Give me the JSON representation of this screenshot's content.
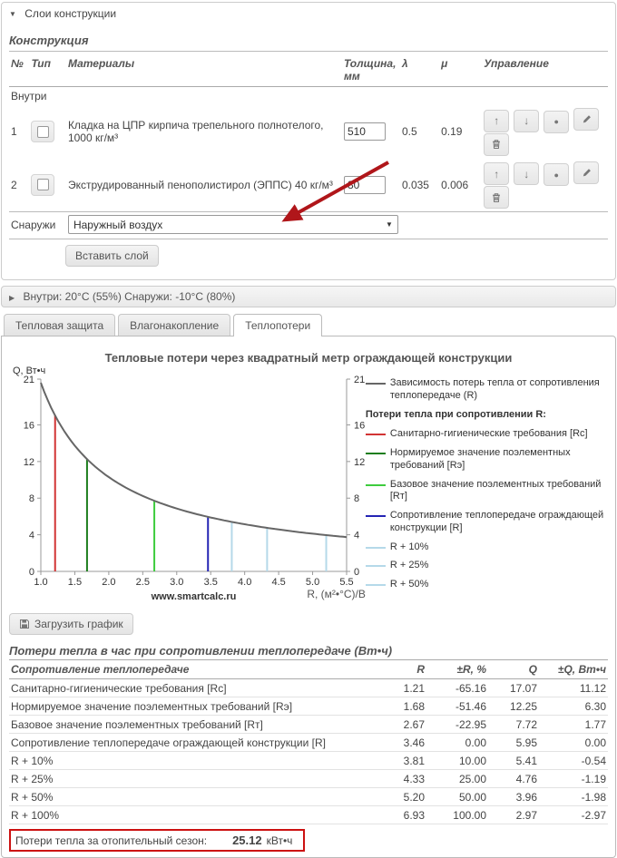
{
  "layers_panel": {
    "header": "Слои конструкции"
  },
  "construction": {
    "title": "Конструкция",
    "columns": [
      "№",
      "Тип",
      "Материалы",
      "Толщина, мм",
      "λ",
      "μ",
      "Управление"
    ],
    "inside_label": "Внутри",
    "rows": [
      {
        "num": "1",
        "material": "Кладка на ЦПР кирпича трепельного полнотелого, 1000 кг/м³",
        "thickness": "510",
        "lambda": "0.5",
        "mu": "0.19"
      },
      {
        "num": "2",
        "material": "Экструдированный пенополистирол (ЭППС) 40 кг/м³",
        "thickness": "80",
        "lambda": "0.035",
        "mu": "0.006"
      }
    ],
    "row_buttons": [
      "move-up",
      "move-down",
      "select",
      "edit",
      "delete"
    ],
    "outside_label": "Снаружи",
    "outside_select_value": "Наружный воздух",
    "insert_button": "Вставить слой"
  },
  "climate_bar": {
    "label": "Внутри: 20°C (55%) Снаружи: -10°C (80%)"
  },
  "tabs": [
    {
      "label": "Тепловая защита",
      "active": false
    },
    {
      "label": "Влагонакопление",
      "active": false
    },
    {
      "label": "Теплопотери",
      "active": true
    }
  ],
  "chart_data": {
    "type": "line",
    "title": "Тепловые потери через квадратный метр ограждающей конструкции",
    "ylabel": "Q, Вт•ч",
    "xlabel": "R, (м²•°С)/Вт",
    "watermark": "www.smartcalc.ru",
    "xlim": [
      1.0,
      5.5
    ],
    "ylim": [
      0,
      21
    ],
    "x_ticks": [
      1.0,
      1.5,
      2.0,
      2.5,
      3.0,
      3.5,
      4.0,
      4.5,
      5.0,
      5.5
    ],
    "y_ticks": [
      0,
      4,
      8,
      12,
      16,
      21
    ],
    "curve": {
      "name": "Зависимость потерь тепла от сопротивления теплопередаче (R)",
      "k": 20.6,
      "color": "#666666"
    },
    "legend_subtitle": "Потери тепла при сопротивлении R:",
    "vlines": [
      {
        "name": "Санитарно-гигиенические требования [Rс]",
        "r": 1.21,
        "q": 17.07,
        "color": "#d23434"
      },
      {
        "name": "Нормируемое значение поэлементных требований [Rэ]",
        "r": 1.68,
        "q": 12.25,
        "color": "#1e7e1e"
      },
      {
        "name": "Базовое значение поэлементных требований [Rт]",
        "r": 2.67,
        "q": 7.72,
        "color": "#3ecc3e"
      },
      {
        "name": "Сопротивление теплопередаче ограждающей конструкции [R]",
        "r": 3.46,
        "q": 5.95,
        "color": "#2424b4"
      },
      {
        "name": "R + 10%",
        "r": 3.81,
        "q": 5.41,
        "color": "#b5d9e9"
      },
      {
        "name": "R + 25%",
        "r": 4.33,
        "q": 4.76,
        "color": "#b5d9e9"
      },
      {
        "name": "R + 50%",
        "r": 5.2,
        "q": 3.96,
        "color": "#b5d9e9"
      }
    ]
  },
  "download_button": {
    "label": "Загрузить график"
  },
  "loss_table": {
    "title": "Потери тепла в час при сопротивлении теплопередаче (Вт•ч)",
    "columns": [
      "Сопротивление теплопередаче",
      "R",
      "±R, %",
      "Q",
      "±Q, Вт•ч"
    ],
    "rows": [
      [
        "Санитарно-гигиенические требования [Rс]",
        "1.21",
        "-65.16",
        "17.07",
        "11.12"
      ],
      [
        "Нормируемое значение поэлементных требований [Rэ]",
        "1.68",
        "-51.46",
        "12.25",
        "6.30"
      ],
      [
        "Базовое значение поэлементных требований [Rт]",
        "2.67",
        "-22.95",
        "7.72",
        "1.77"
      ],
      [
        "Сопротивление теплопередаче ограждающей конструкции [R]",
        "3.46",
        "0.00",
        "5.95",
        "0.00"
      ],
      [
        "R + 10%",
        "3.81",
        "10.00",
        "5.41",
        "-0.54"
      ],
      [
        "R + 25%",
        "4.33",
        "25.00",
        "4.76",
        "-1.19"
      ],
      [
        "R + 50%",
        "5.20",
        "50.00",
        "3.96",
        "-1.98"
      ],
      [
        "R + 100%",
        "6.93",
        "100.00",
        "2.97",
        "-2.97"
      ]
    ]
  },
  "season_total": {
    "label": "Потери тепла за отопительный сезон:",
    "value": "25.12",
    "unit": "кВт•ч"
  },
  "annotation_arrow": {
    "color": "#b0161a"
  }
}
